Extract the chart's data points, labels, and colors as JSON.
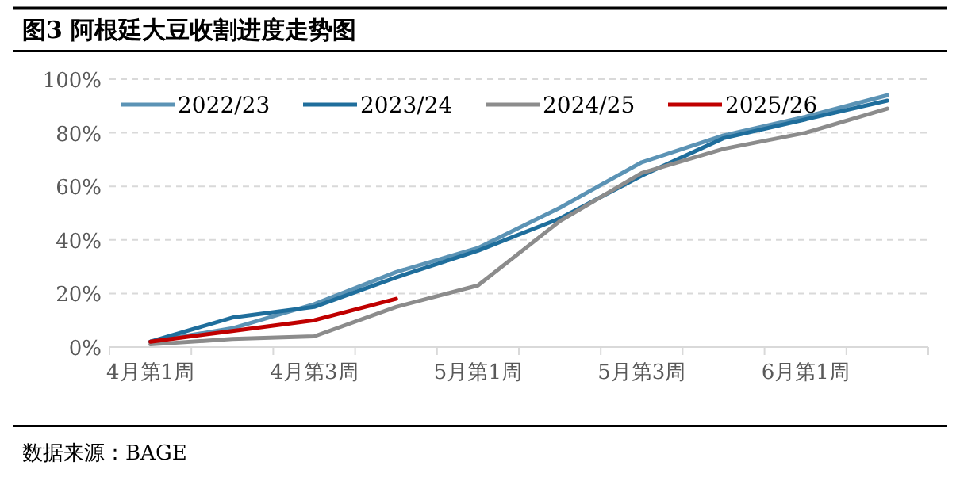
{
  "chart_data": {
    "type": "line",
    "title": "图3 阿根廷大豆收割进度走势图",
    "categories": [
      "4月第1周",
      null,
      "4月第3周",
      null,
      "5月第1周",
      null,
      "5月第3周",
      null,
      "6月第1周",
      null
    ],
    "series": [
      {
        "name": "2022/23",
        "color": "#5b93b5",
        "values": [
          2,
          7,
          16,
          28,
          37,
          52,
          69,
          79,
          86,
          94
        ]
      },
      {
        "name": "2023/24",
        "color": "#1f6e9c",
        "values": [
          2,
          11,
          15,
          26,
          36,
          48,
          64,
          78,
          85,
          92
        ]
      },
      {
        "name": "2024/25",
        "color": "#8c8c8c",
        "values": [
          1,
          3,
          4,
          15,
          23,
          47,
          65,
          74,
          80,
          89
        ]
      },
      {
        "name": "2025/26",
        "color": "#c00000",
        "values": [
          2,
          6,
          10,
          18,
          null,
          null,
          null,
          null,
          null,
          null
        ]
      }
    ],
    "ylim": [
      0,
      100
    ],
    "yticks": [
      {
        "value": 0,
        "label": "0%"
      },
      {
        "value": 20,
        "label": "20%"
      },
      {
        "value": 40,
        "label": "40%"
      },
      {
        "value": 60,
        "label": "60%"
      },
      {
        "value": 80,
        "label": "80%"
      },
      {
        "value": 100,
        "label": "100%"
      }
    ],
    "grid": "y",
    "legend": "top",
    "annotations": [
      "数据来源：BAGE"
    ]
  }
}
